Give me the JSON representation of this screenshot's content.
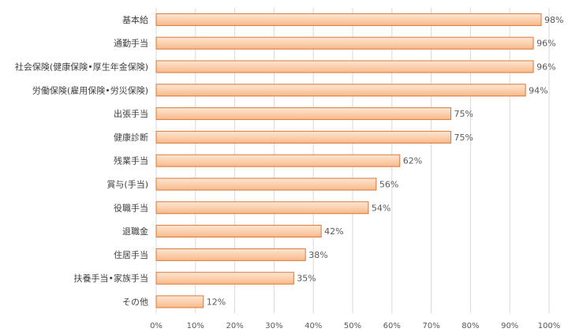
{
  "chart_data": {
    "type": "bar",
    "orientation": "horizontal",
    "categories": [
      "基本給",
      "通勤手当",
      "社会保険(健康保険•厚生年金保険)",
      "労働保険(雇用保険•労災保険)",
      "出張手当",
      "健康診断",
      "残業手当",
      "賞与(手当)",
      "役職手当",
      "退職金",
      "住居手当",
      "扶養手当•家族手当",
      "その他"
    ],
    "values": [
      98,
      96,
      96,
      94,
      75,
      75,
      62,
      56,
      54,
      42,
      38,
      35,
      12
    ],
    "value_labels": [
      "98%",
      "96%",
      "96%",
      "94%",
      "75%",
      "75%",
      "62%",
      "56%",
      "54%",
      "42%",
      "38%",
      "35%",
      "12%"
    ],
    "xlim": [
      0,
      100
    ],
    "x_ticks": [
      0,
      10,
      20,
      30,
      40,
      50,
      60,
      70,
      80,
      90,
      100
    ],
    "x_tick_labels": [
      "0%",
      "10%",
      "20%",
      "30%",
      "40%",
      "50%",
      "60%",
      "70%",
      "80%",
      "90%",
      "100%"
    ],
    "grid": "vertical",
    "legend": "none",
    "title": "",
    "xlabel": "",
    "ylabel": "",
    "colors": {
      "bar_light": "#fde7d4",
      "bar_dark": "#f9b98a",
      "bar_edge": "#d9773a",
      "grid": "#d9d9d9"
    }
  }
}
